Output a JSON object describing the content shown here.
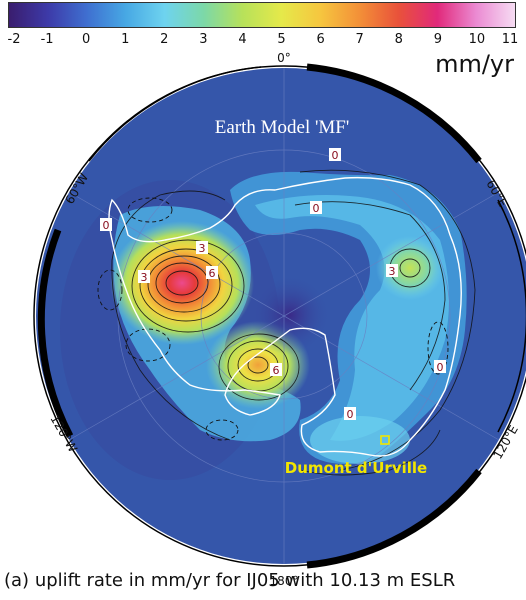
{
  "colorbar": {
    "ticks": [
      "-2",
      "-1",
      "0",
      "1",
      "2",
      "3",
      "4",
      "5",
      "6",
      "7",
      "8",
      "9",
      "10",
      "11"
    ],
    "unit": "mm/yr",
    "colors": [
      "#3a1d6e",
      "#3d3aa8",
      "#3f6fd0",
      "#47a8e4",
      "#6ed3ef",
      "#7cd8a8",
      "#b7e15a",
      "#e5e94a",
      "#f6c63f",
      "#f39038",
      "#e9523a",
      "#e1297a",
      "#eb8ad2",
      "#f6dcf3"
    ]
  },
  "map": {
    "title": "Earth Model 'MF'",
    "longitude_labels": {
      "top": "0°",
      "bottom": "180°",
      "upper_left": "60°W",
      "upper_right": "60°E",
      "lower_left": "120°W",
      "lower_right": "120°E"
    },
    "contour_labels": [
      "0",
      "0",
      "0",
      "0",
      "0",
      "3",
      "3",
      "3",
      "6",
      "6"
    ],
    "station_label": "Dumont  d'Urville",
    "colors": {
      "background": "#3553a8",
      "coast": "#ffffff",
      "station": "#f2e600"
    }
  },
  "caption": {
    "letter": "(a)",
    "text": "uplift rate in mm/yr for IJ05 with 10.13 m ESLR"
  }
}
